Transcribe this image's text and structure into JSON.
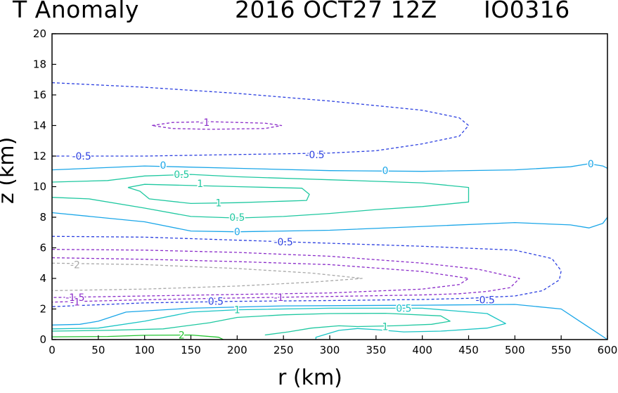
{
  "header": {
    "title": "T Anomaly",
    "date": "2016 OCT27 12Z",
    "storm_id": "IO0316"
  },
  "colors": {
    "dark_blue": "#2b3fe0",
    "light_blue": "#1aa6e8",
    "teal": "#1fc8a0",
    "cyan": "#19c4c4",
    "purple": "#8a2bc9",
    "gray": "#a8a8a8",
    "green": "#22c32f"
  },
  "chart_data": {
    "type": "contour",
    "title": "T Anomaly   2016 OCT27 12Z   IO0316",
    "xlabel": "r (km)",
    "ylabel": "z (km)",
    "xlim": [
      0,
      600
    ],
    "ylim": [
      0,
      20
    ],
    "xticks": [
      0,
      50,
      100,
      150,
      200,
      250,
      300,
      350,
      400,
      450,
      500,
      550,
      600
    ],
    "yticks": [
      0,
      2,
      4,
      6,
      8,
      10,
      12,
      14,
      16,
      18,
      20
    ],
    "contours": [
      {
        "level": -0.5,
        "color": "dark_blue",
        "dashed": true,
        "points": [
          [
            0,
            16.8
          ],
          [
            100,
            16.5
          ],
          [
            200,
            16.1
          ],
          [
            300,
            15.6
          ],
          [
            400,
            15.0
          ],
          [
            440,
            14.5
          ],
          [
            450,
            14.0
          ],
          [
            440,
            13.3
          ],
          [
            400,
            12.8
          ],
          [
            350,
            12.35
          ],
          [
            300,
            12.2
          ],
          [
            200,
            12.1
          ],
          [
            100,
            12.0
          ],
          [
            0,
            12.0
          ]
        ]
      },
      {
        "level": -1,
        "color": "purple",
        "dashed": true,
        "points": [
          [
            108,
            14.0
          ],
          [
            130,
            14.2
          ],
          [
            170,
            14.25
          ],
          [
            230,
            14.15
          ],
          [
            248,
            14.0
          ],
          [
            230,
            13.8
          ],
          [
            170,
            13.75
          ],
          [
            130,
            13.8
          ],
          [
            108,
            14.0
          ]
        ]
      },
      {
        "level": 0,
        "color": "light_blue",
        "dashed": false,
        "points": [
          [
            0,
            11.1
          ],
          [
            100,
            11.35
          ],
          [
            200,
            11.2
          ],
          [
            300,
            11.05
          ],
          [
            400,
            11.0
          ],
          [
            500,
            11.1
          ],
          [
            560,
            11.3
          ],
          [
            580,
            11.5
          ],
          [
            595,
            11.35
          ],
          [
            600,
            11.2
          ]
        ]
      },
      {
        "level": 0,
        "color": "light_blue",
        "dashed": false,
        "points": [
          [
            600,
            8.0
          ],
          [
            595,
            7.6
          ],
          [
            580,
            7.3
          ],
          [
            560,
            7.5
          ],
          [
            500,
            7.65
          ],
          [
            400,
            7.4
          ],
          [
            300,
            7.15
          ],
          [
            200,
            7.05
          ],
          [
            150,
            7.1
          ],
          [
            100,
            7.7
          ],
          [
            0,
            8.3
          ]
        ]
      },
      {
        "level": 0.5,
        "color": "teal",
        "dashed": false,
        "points": [
          [
            0,
            10.3
          ],
          [
            60,
            10.4
          ],
          [
            100,
            10.7
          ],
          [
            150,
            10.8
          ],
          [
            200,
            10.65
          ],
          [
            300,
            10.45
          ],
          [
            400,
            10.25
          ],
          [
            450,
            9.95
          ],
          [
            450,
            9.0
          ],
          [
            400,
            8.7
          ],
          [
            350,
            8.5
          ],
          [
            300,
            8.25
          ],
          [
            250,
            8.05
          ],
          [
            200,
            7.95
          ],
          [
            150,
            8.05
          ],
          [
            100,
            8.6
          ],
          [
            40,
            9.2
          ],
          [
            0,
            9.3
          ]
        ]
      },
      {
        "level": 1,
        "color": "teal",
        "dashed": false,
        "points": [
          [
            82,
            9.95
          ],
          [
            100,
            10.15
          ],
          [
            200,
            10.0
          ],
          [
            270,
            9.9
          ],
          [
            278,
            9.5
          ],
          [
            275,
            9.1
          ],
          [
            250,
            9.05
          ],
          [
            200,
            8.95
          ],
          [
            150,
            8.9
          ],
          [
            105,
            9.2
          ],
          [
            95,
            9.7
          ],
          [
            82,
            9.95
          ]
        ]
      },
      {
        "level": -0.5,
        "color": "dark_blue",
        "dashed": true,
        "points": [
          [
            0,
            6.75
          ],
          [
            100,
            6.7
          ],
          [
            200,
            6.5
          ],
          [
            300,
            6.3
          ],
          [
            400,
            6.1
          ],
          [
            500,
            5.85
          ],
          [
            540,
            5.3
          ],
          [
            550,
            4.5
          ],
          [
            548,
            3.9
          ],
          [
            530,
            3.2
          ],
          [
            500,
            2.85
          ],
          [
            450,
            2.7
          ],
          [
            400,
            2.62
          ],
          [
            300,
            2.55
          ],
          [
            200,
            2.5
          ],
          [
            100,
            2.4
          ],
          [
            0,
            2.15
          ]
        ]
      },
      {
        "level": -1,
        "color": "purple",
        "dashed": true,
        "points": [
          [
            0,
            5.9
          ],
          [
            100,
            5.85
          ],
          [
            200,
            5.7
          ],
          [
            300,
            5.45
          ],
          [
            400,
            5.0
          ],
          [
            460,
            4.6
          ],
          [
            505,
            4.0
          ],
          [
            495,
            3.4
          ],
          [
            470,
            3.15
          ],
          [
            440,
            3.0
          ],
          [
            400,
            2.92
          ],
          [
            300,
            2.82
          ],
          [
            200,
            2.72
          ],
          [
            100,
            2.6
          ],
          [
            0,
            2.45
          ]
        ]
      },
      {
        "level": -1.5,
        "color": "purple",
        "dashed": true,
        "points": [
          [
            0,
            5.35
          ],
          [
            100,
            5.25
          ],
          [
            200,
            5.1
          ],
          [
            300,
            4.9
          ],
          [
            400,
            4.45
          ],
          [
            450,
            4.0
          ],
          [
            440,
            3.6
          ],
          [
            400,
            3.3
          ],
          [
            300,
            3.05
          ],
          [
            200,
            2.95
          ],
          [
            100,
            2.85
          ],
          [
            0,
            2.75
          ]
        ]
      },
      {
        "level": -2,
        "color": "gray",
        "dashed": true,
        "points": [
          [
            0,
            5.0
          ],
          [
            100,
            4.9
          ],
          [
            200,
            4.65
          ],
          [
            280,
            4.35
          ],
          [
            335,
            4.0
          ],
          [
            280,
            3.75
          ],
          [
            200,
            3.5
          ],
          [
            100,
            3.3
          ],
          [
            0,
            3.2
          ]
        ]
      },
      {
        "level": 0,
        "color": "light_blue",
        "dashed": false,
        "points": [
          [
            0,
            0.95
          ],
          [
            30,
            1.0
          ],
          [
            50,
            1.2
          ],
          [
            80,
            1.8
          ],
          [
            150,
            2.05
          ],
          [
            250,
            2.2
          ],
          [
            400,
            2.25
          ],
          [
            500,
            2.3
          ],
          [
            550,
            2.0
          ],
          [
            570,
            1.2
          ],
          [
            585,
            0.6
          ],
          [
            600,
            0.0
          ]
        ]
      },
      {
        "level": 0.5,
        "color": "cyan",
        "dashed": false,
        "points": [
          [
            0,
            0.7
          ],
          [
            50,
            0.75
          ],
          [
            100,
            1.2
          ],
          [
            150,
            1.8
          ],
          [
            200,
            1.95
          ],
          [
            300,
            2.05
          ],
          [
            400,
            2.05
          ],
          [
            470,
            1.7
          ],
          [
            490,
            1.05
          ],
          [
            470,
            0.75
          ],
          [
            420,
            0.55
          ],
          [
            380,
            0.5
          ],
          [
            350,
            0.65
          ],
          [
            330,
            0.72
          ],
          [
            310,
            0.6
          ],
          [
            285,
            0.15
          ],
          [
            285,
            0.0
          ]
        ]
      },
      {
        "level": 1,
        "color": "teal",
        "dashed": false,
        "points": [
          [
            0,
            0.55
          ],
          [
            60,
            0.6
          ],
          [
            120,
            0.7
          ],
          [
            170,
            1.1
          ],
          [
            200,
            1.45
          ],
          [
            250,
            1.62
          ],
          [
            300,
            1.7
          ],
          [
            360,
            1.72
          ],
          [
            420,
            1.55
          ],
          [
            430,
            1.2
          ],
          [
            410,
            1.0
          ],
          [
            370,
            0.9
          ],
          [
            330,
            0.85
          ],
          [
            310,
            0.9
          ],
          [
            280,
            0.75
          ],
          [
            255,
            0.5
          ],
          [
            230,
            0.3
          ]
        ]
      },
      {
        "level": 2,
        "color": "green",
        "dashed": false,
        "points": [
          [
            0,
            0.18
          ],
          [
            60,
            0.2
          ],
          [
            100,
            0.28
          ],
          [
            150,
            0.3
          ],
          [
            180,
            0.15
          ],
          [
            185,
            0.0
          ]
        ]
      }
    ],
    "labels": [
      {
        "text": "-1",
        "x": 165,
        "y": 14.2,
        "color": "purple"
      },
      {
        "text": "-0.5",
        "x": 32,
        "y": 12.0,
        "color": "dark_blue"
      },
      {
        "text": "-0.5",
        "x": 284,
        "y": 12.1,
        "color": "dark_blue"
      },
      {
        "text": "0",
        "x": 120,
        "y": 11.4,
        "color": "light_blue"
      },
      {
        "text": "0",
        "x": 360,
        "y": 11.05,
        "color": "light_blue"
      },
      {
        "text": "0",
        "x": 582,
        "y": 11.5,
        "color": "light_blue"
      },
      {
        "text": "0.5",
        "x": 140,
        "y": 10.8,
        "color": "teal"
      },
      {
        "text": "1",
        "x": 160,
        "y": 10.2,
        "color": "teal"
      },
      {
        "text": "1",
        "x": 180,
        "y": 8.95,
        "color": "teal"
      },
      {
        "text": "0.5",
        "x": 200,
        "y": 8.0,
        "color": "teal"
      },
      {
        "text": "0",
        "x": 200,
        "y": 7.05,
        "color": "light_blue"
      },
      {
        "text": "-0.5",
        "x": 250,
        "y": 6.4,
        "color": "dark_blue"
      },
      {
        "text": "-2",
        "x": 25,
        "y": 4.9,
        "color": "gray"
      },
      {
        "text": "-1.5",
        "x": 25,
        "y": 2.75,
        "color": "purple"
      },
      {
        "text": "-1",
        "x": 25,
        "y": 2.45,
        "color": "purple"
      },
      {
        "text": "-0.5",
        "x": 175,
        "y": 2.5,
        "color": "dark_blue"
      },
      {
        "text": "-1",
        "x": 245,
        "y": 2.75,
        "color": "purple"
      },
      {
        "text": "-0.5",
        "x": 468,
        "y": 2.6,
        "color": "dark_blue"
      },
      {
        "text": "1",
        "x": 200,
        "y": 1.95,
        "color": "teal"
      },
      {
        "text": "0.5",
        "x": 380,
        "y": 2.05,
        "color": "cyan"
      },
      {
        "text": "1",
        "x": 360,
        "y": 0.85,
        "color": "teal"
      },
      {
        "text": "2",
        "x": 140,
        "y": 0.3,
        "color": "green"
      }
    ]
  }
}
